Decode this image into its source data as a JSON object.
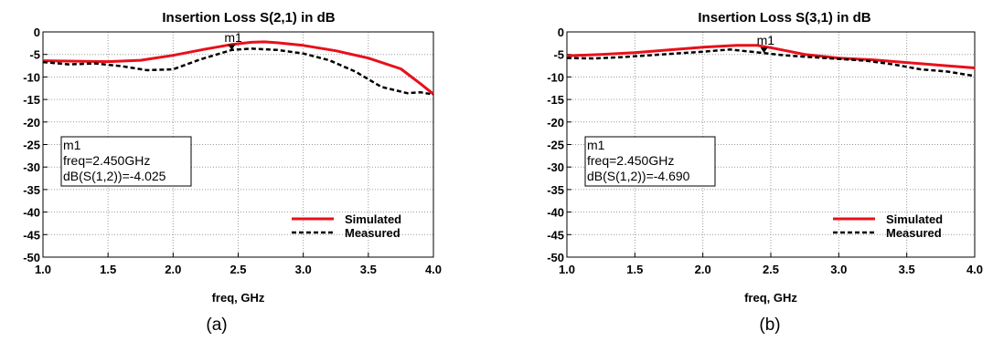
{
  "chart_data": [
    {
      "type": "line",
      "title": "Insertion Loss S(2,1) in dB",
      "xlabel": "freq, GHz",
      "ylabel": "",
      "xlim": [
        1.0,
        4.0
      ],
      "ylim": [
        -50,
        0
      ],
      "xticks": [
        "1.0",
        "1.5",
        "2.0",
        "2.5",
        "3.0",
        "3.5",
        "4.0"
      ],
      "yticks": [
        "0",
        "-5",
        "-10",
        "-15",
        "-20",
        "-25",
        "-30",
        "-35",
        "-40",
        "-45",
        "-50"
      ],
      "grid": true,
      "legend_position": "bottom-right",
      "caption": "(a)",
      "series": [
        {
          "name": "Simulated",
          "color": "#e8101a",
          "style": "solid",
          "x": [
            1.0,
            1.25,
            1.5,
            1.75,
            2.0,
            2.25,
            2.45,
            2.6,
            2.7,
            2.8,
            3.0,
            3.25,
            3.5,
            3.75,
            3.9,
            4.0
          ],
          "y": [
            -6.4,
            -6.5,
            -6.6,
            -6.3,
            -5.2,
            -3.8,
            -2.8,
            -2.3,
            -2.2,
            -2.4,
            -3.0,
            -4.2,
            -5.8,
            -8.2,
            -11.5,
            -13.8
          ]
        },
        {
          "name": "Measured",
          "color": "#000000",
          "style": "dashed",
          "x": [
            1.0,
            1.2,
            1.4,
            1.6,
            1.8,
            2.0,
            2.2,
            2.45,
            2.6,
            2.8,
            3.0,
            3.2,
            3.4,
            3.6,
            3.8,
            3.9,
            4.0
          ],
          "y": [
            -6.7,
            -7.2,
            -7.0,
            -7.6,
            -8.5,
            -8.3,
            -6.2,
            -4.0,
            -3.7,
            -4.0,
            -4.8,
            -6.3,
            -8.8,
            -12.2,
            -13.6,
            -13.4,
            -13.9
          ]
        }
      ],
      "marker": {
        "label": "m1",
        "x": 2.45,
        "y": -4.025,
        "lines": [
          "m1",
          "freq=2.450GHz",
          "dB(S(1,2))=-4.025"
        ]
      }
    },
    {
      "type": "line",
      "title": "Insertion Loss S(3,1) in dB",
      "xlabel": "freq, GHz",
      "ylabel": "",
      "xlim": [
        1.0,
        4.0
      ],
      "ylim": [
        -50,
        0
      ],
      "xticks": [
        "1.0",
        "1.5",
        "2.0",
        "2.5",
        "3.0",
        "3.5",
        "4.0"
      ],
      "yticks": [
        "0",
        "-5",
        "-10",
        "-15",
        "-20",
        "-25",
        "-30",
        "-35",
        "-40",
        "-45",
        "-50"
      ],
      "grid": true,
      "legend_position": "bottom-right",
      "caption": "(b)",
      "series": [
        {
          "name": "Simulated",
          "color": "#e8101a",
          "style": "solid",
          "x": [
            1.0,
            1.25,
            1.5,
            1.75,
            2.0,
            2.25,
            2.4,
            2.5,
            2.75,
            3.0,
            3.25,
            3.5,
            3.75,
            4.0
          ],
          "y": [
            -5.3,
            -5.0,
            -4.6,
            -4.0,
            -3.4,
            -3.0,
            -3.0,
            -3.5,
            -5.0,
            -5.8,
            -6.2,
            -6.8,
            -7.4,
            -8.0
          ]
        },
        {
          "name": "Measured",
          "color": "#000000",
          "style": "dashed",
          "x": [
            1.0,
            1.2,
            1.4,
            1.6,
            1.8,
            2.0,
            2.2,
            2.45,
            2.6,
            2.8,
            3.0,
            3.2,
            3.4,
            3.6,
            3.8,
            4.0
          ],
          "y": [
            -5.8,
            -5.9,
            -5.6,
            -5.2,
            -4.8,
            -4.4,
            -3.9,
            -4.7,
            -5.2,
            -5.6,
            -6.0,
            -6.4,
            -7.2,
            -8.3,
            -8.8,
            -9.8
          ]
        }
      ],
      "marker": {
        "label": "m1",
        "x": 2.45,
        "y": -4.69,
        "lines": [
          "m1",
          "freq=2.450GHz",
          "dB(S(1,2))=-4.690"
        ]
      }
    }
  ]
}
